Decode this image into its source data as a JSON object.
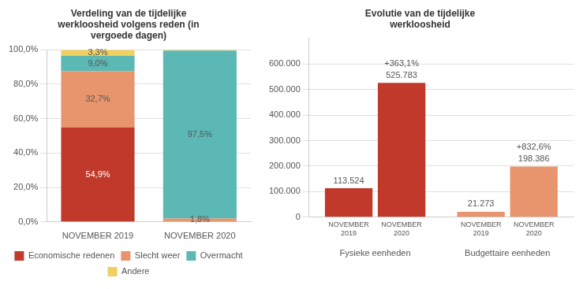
{
  "chart_data": [
    {
      "type": "bar",
      "stacked": true,
      "title": "Verdeling van de tijdelijke\nwerkloosheid volgens reden (in\nvergoede dagen)",
      "categories": [
        "NOVEMBER 2019",
        "NOVEMBER 2020"
      ],
      "series": [
        {
          "name": "Economische redenen",
          "color": "#c0392b",
          "values": [
            54.9,
            0.2
          ],
          "value_labels": [
            "54,9%",
            null
          ]
        },
        {
          "name": "Slecht weer",
          "color": "#e8956d",
          "values": [
            32.7,
            1.8
          ],
          "value_labels": [
            "32,7%",
            "1,8%"
          ]
        },
        {
          "name": "Overmacht",
          "color": "#5bb8b4",
          "values": [
            9.0,
            97.5
          ],
          "value_labels": [
            "9,0%",
            "97,5%"
          ]
        },
        {
          "name": "Andere",
          "color": "#f0d060",
          "values": [
            3.3,
            0.5
          ],
          "value_labels": [
            "3,3%",
            null
          ]
        }
      ],
      "ylim": [
        0,
        100
      ],
      "yticks": [
        {
          "value": 0,
          "label": "0,0%"
        },
        {
          "value": 20,
          "label": "20,0%"
        },
        {
          "value": 40,
          "label": "40,0%"
        },
        {
          "value": 60,
          "label": "60,0%"
        },
        {
          "value": 80,
          "label": "80,0%"
        },
        {
          "value": 100,
          "label": "100,0%"
        }
      ],
      "grid": true,
      "legend": "bottom",
      "data_labels": true
    },
    {
      "type": "bar",
      "title": "Evolutie van de tijdelijke\nwerkloosheid",
      "categories": [
        "Fysieke eenheden",
        "Budgettaire eenheden"
      ],
      "series": [
        {
          "name": "NOVEMBER\n2019",
          "colors": [
            "#c0392b",
            "#e8956d"
          ],
          "values": [
            113524,
            21273
          ],
          "value_labels": [
            "113.524",
            "21.273"
          ]
        },
        {
          "name": "NOVEMBER\n2020",
          "colors": [
            "#c0392b",
            "#e8956d"
          ],
          "values": [
            525783,
            198386
          ],
          "value_labels": [
            "525.783",
            "198.386"
          ]
        }
      ],
      "annotations": [
        {
          "text": "+363,1%",
          "category": "Fysieke eenheden",
          "series": "NOVEMBER\n2020"
        },
        {
          "text": "+832,6%",
          "category": "Budgettaire eenheden",
          "series": "NOVEMBER\n2020"
        }
      ],
      "ylim": [
        0,
        700000
      ],
      "yticks": [
        0,
        {
          "value": 100000,
          "label": "100.000"
        },
        {
          "value": 200000,
          "label": "200.000"
        },
        {
          "value": 300000,
          "label": "300.000"
        },
        {
          "value": 400000,
          "label": "400.000"
        },
        {
          "value": 500000,
          "label": "500.000"
        },
        {
          "value": 600000,
          "label": "600.000"
        }
      ],
      "grid": true,
      "data_labels": true
    }
  ]
}
